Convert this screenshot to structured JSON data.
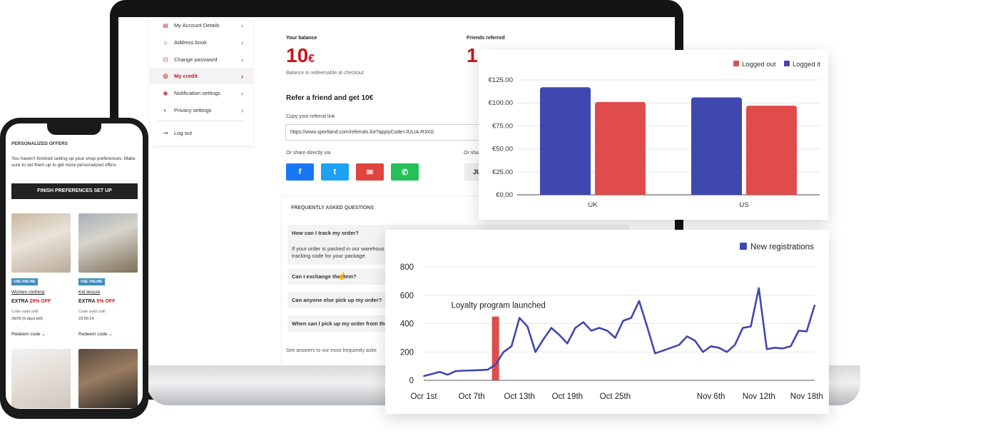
{
  "laptop": {
    "sidebar": [
      {
        "label": "My Account Details",
        "icon": "account-details-icon"
      },
      {
        "label": "Address book",
        "icon": "address-book-icon"
      },
      {
        "label": "Change password",
        "icon": "lock-icon"
      },
      {
        "label": "My credit",
        "icon": "credit-icon",
        "active": true
      },
      {
        "label": "Notification settings",
        "icon": "notification-icon"
      },
      {
        "label": "Privacy settings",
        "icon": "eye-icon"
      },
      {
        "label": "Log out",
        "icon": "logout-icon"
      }
    ],
    "balance_label": "Your balance",
    "balance_value": "10",
    "balance_currency": "€",
    "balance_note": "Balance is redeemable at checkout",
    "friends_label": "Friends referred",
    "friends_value": "1",
    "refer_heading": "Refer a friend and get 10€",
    "copy_link_label": "Copy your referral link",
    "referral_link": "https://www.sportland.com/referrals.list?applyCode=JULIA-R3XG",
    "share_label": "Or share directly via",
    "share_label_2": "Or sha",
    "code_partial": "JU",
    "social": [
      {
        "name": "facebook",
        "glyph": "f",
        "color": "#1877f2"
      },
      {
        "name": "twitter",
        "glyph": "t",
        "color": "#1da1f2"
      },
      {
        "name": "email",
        "glyph": "✉",
        "color": "#e0453d"
      },
      {
        "name": "whatsapp",
        "glyph": "✆",
        "color": "#25c05a"
      }
    ],
    "faq_title": "FREQUENTLY ASKED QUESTIONS",
    "faq": [
      {
        "q": "How can I track my order?",
        "a1": "If your order is packed in our warehous",
        "a2": "tracking code for your package."
      },
      {
        "q": "Can I exchange the item?"
      },
      {
        "q": "Can anyone else pick up my order?"
      },
      {
        "q": "When can I pick up my order from the"
      }
    ],
    "faq_footer": "See answers to our most frequently aske"
  },
  "phone": {
    "heading": "PERSONALIZED OFFERS",
    "message": "You haven't finished setting up your shop preferences. Make sure to set them up to get more personalized offers",
    "cta": "FINISH PREFERENCES SET UP",
    "offers": [
      {
        "badge": "USE ONLINE",
        "category": "Women clothing",
        "extra": "EXTRA",
        "discount": "25% OFF",
        "valid_label": "Code valid until",
        "valid_value": "28/05 (5 days left)",
        "redeem": "Redeem code"
      },
      {
        "badge": "USE ONLINE",
        "category": "Kid leisure",
        "extra": "EXTRA",
        "discount": "5% OFF",
        "valid_label": "Code valid until",
        "valid_value": "23:55:14",
        "redeem": "Redeem code"
      }
    ]
  },
  "colors": {
    "brand_red": "#c8161d",
    "bar_blue": "#3f48ae",
    "bar_red": "#e04c4c",
    "line_blue": "#3f48ae"
  },
  "chart_data": [
    {
      "type": "bar",
      "categories": [
        "UK",
        "US"
      ],
      "series": [
        {
          "name": "Logged out",
          "values": [
            101,
            97
          ],
          "color": "#e04c4c"
        },
        {
          "name": "Logged it",
          "values": [
            117,
            106
          ],
          "color": "#3f48ae"
        }
      ],
      "series_order": [
        "Logged it",
        "Logged out"
      ],
      "yticks": [
        "€0.00",
        "€25.00",
        "€50.00",
        "€75.00",
        "€100.00",
        "€125.00"
      ],
      "ylim": [
        0,
        125
      ],
      "legend": "top-right",
      "grid": true
    },
    {
      "type": "line",
      "series": [
        {
          "name": "New registrations",
          "color": "#3f48ae",
          "values": [
            {
              "x": "Oct 1",
              "y": 30
            },
            {
              "x": "Oct 2",
              "y": 45
            },
            {
              "x": "Oct 3",
              "y": 60
            },
            {
              "x": "Oct 4",
              "y": 40
            },
            {
              "x": "Oct 5",
              "y": 65
            },
            {
              "x": "Oct 6",
              "y": 68
            },
            {
              "x": "Oct 7",
              "y": 70
            },
            {
              "x": "Oct 8",
              "y": 72
            },
            {
              "x": "Oct 9",
              "y": 75
            },
            {
              "x": "Oct 10",
              "y": 110
            },
            {
              "x": "Oct 11",
              "y": 200
            },
            {
              "x": "Oct 12",
              "y": 240
            },
            {
              "x": "Oct 13",
              "y": 440
            },
            {
              "x": "Oct 14",
              "y": 380
            },
            {
              "x": "Oct 15",
              "y": 200
            },
            {
              "x": "Oct 16",
              "y": 290
            },
            {
              "x": "Oct 17",
              "y": 370
            },
            {
              "x": "Oct 18",
              "y": 320
            },
            {
              "x": "Oct 19",
              "y": 260
            },
            {
              "x": "Oct 20",
              "y": 370
            },
            {
              "x": "Oct 21",
              "y": 410
            },
            {
              "x": "Oct 22",
              "y": 350
            },
            {
              "x": "Oct 23",
              "y": 370
            },
            {
              "x": "Oct 24",
              "y": 350
            },
            {
              "x": "Oct 25",
              "y": 300
            },
            {
              "x": "Oct 26",
              "y": 420
            },
            {
              "x": "Oct 27",
              "y": 440
            },
            {
              "x": "Oct 28",
              "y": 560
            },
            {
              "x": "Oct 29",
              "y": 380
            },
            {
              "x": "Oct 30",
              "y": 190
            },
            {
              "x": "Oct 31",
              "y": 210
            },
            {
              "x": "Nov 1",
              "y": 230
            },
            {
              "x": "Nov 2",
              "y": 250
            },
            {
              "x": "Nov 3",
              "y": 310
            },
            {
              "x": "Nov 4",
              "y": 280
            },
            {
              "x": "Nov 5",
              "y": 200
            },
            {
              "x": "Nov 6",
              "y": 240
            },
            {
              "x": "Nov 7",
              "y": 230
            },
            {
              "x": "Nov 8",
              "y": 200
            },
            {
              "x": "Nov 9",
              "y": 250
            },
            {
              "x": "Nov 10",
              "y": 370
            },
            {
              "x": "Nov 11",
              "y": 380
            },
            {
              "x": "Nov 12",
              "y": 650
            },
            {
              "x": "Nov 13",
              "y": 220
            },
            {
              "x": "Nov 14",
              "y": 230
            },
            {
              "x": "Nov 15",
              "y": 225
            },
            {
              "x": "Nov 16",
              "y": 240
            },
            {
              "x": "Nov 17",
              "y": 350
            },
            {
              "x": "Nov 18",
              "y": 345
            },
            {
              "x": "Nov 19",
              "y": 530
            }
          ]
        }
      ],
      "xticks": [
        "Ocr 1st",
        "Oct 7th",
        "Oct 13th",
        "Oct 19th",
        "Oct 25th",
        "Nov 6th",
        "Nov 12th",
        "Nov 18th"
      ],
      "xtick_positions": [
        "Oct 1",
        "Oct 7",
        "Oct 13",
        "Oct 19",
        "Oct 25",
        "Nov 6",
        "Nov 12",
        "Nov 18"
      ],
      "yticks": [
        "0",
        "200",
        "400",
        "600",
        "800"
      ],
      "ylim": [
        0,
        800
      ],
      "annotation": {
        "label": "Loyalty program launched",
        "at": "Oct 10",
        "value": 450,
        "color": "#e04c4c"
      },
      "legend": "top-right",
      "grid": true
    }
  ]
}
